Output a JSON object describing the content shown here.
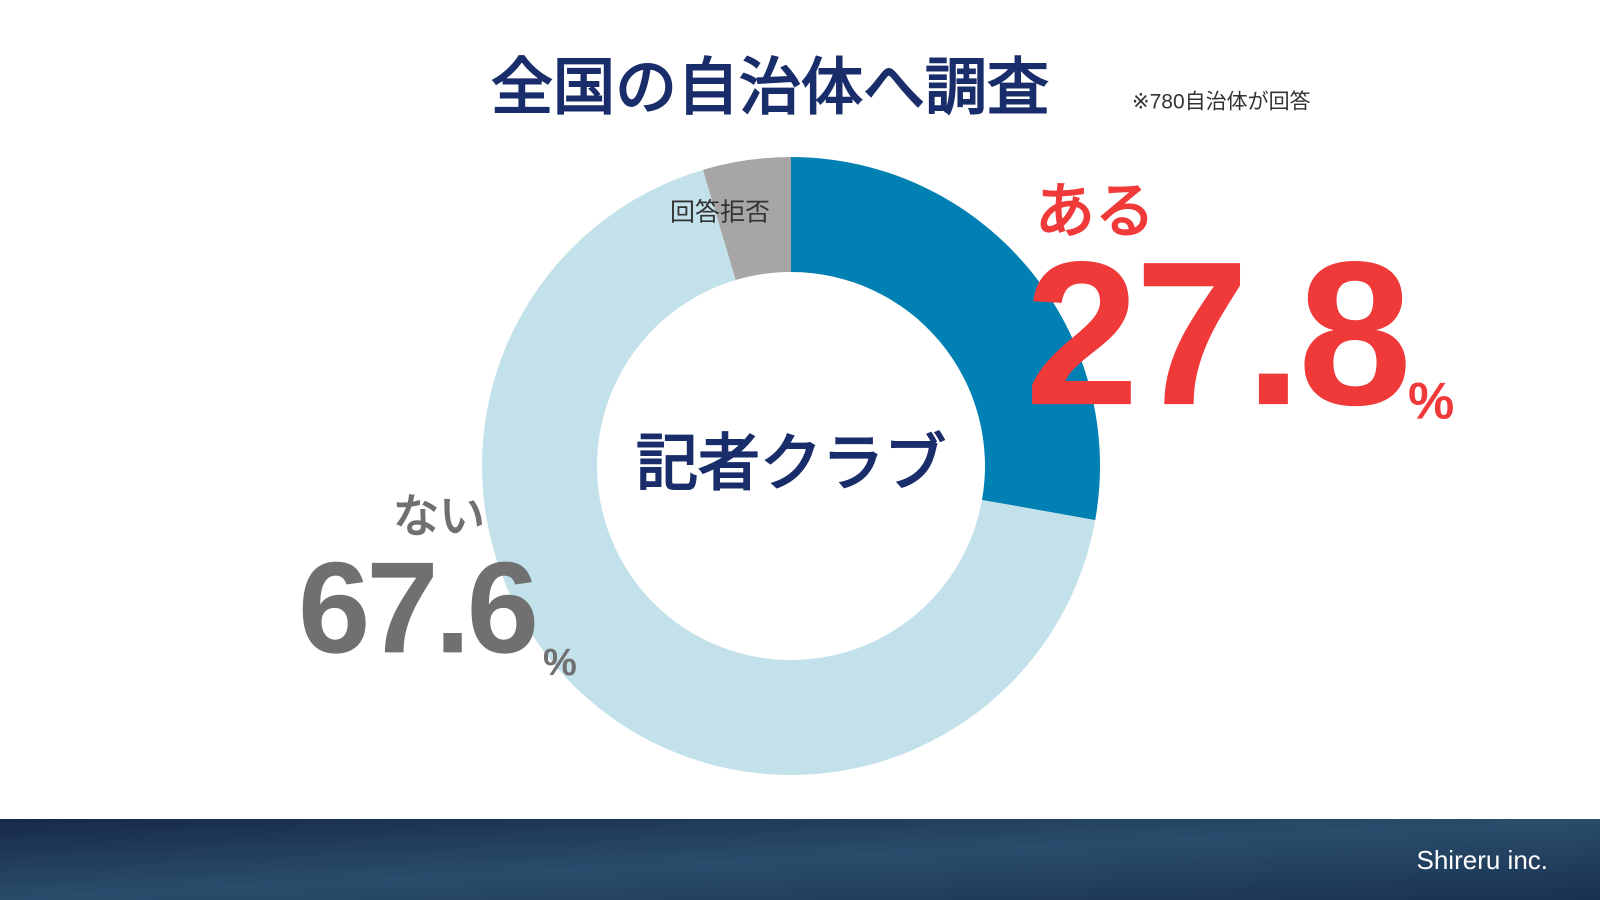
{
  "chart_data": {
    "type": "pie",
    "donut": true,
    "title": "全国の自治体へ調査",
    "note": "※780自治体が回答",
    "center_label": "記者クラブ",
    "categories": [
      "ある",
      "ない",
      "回答拒否"
    ],
    "values": [
      27.8,
      67.6,
      4.6
    ],
    "colors": [
      "#0080b3",
      "#c3e1ea",
      "#a6a6a6"
    ],
    "unit": "%"
  },
  "footer": {
    "brand": "Shireru inc."
  }
}
